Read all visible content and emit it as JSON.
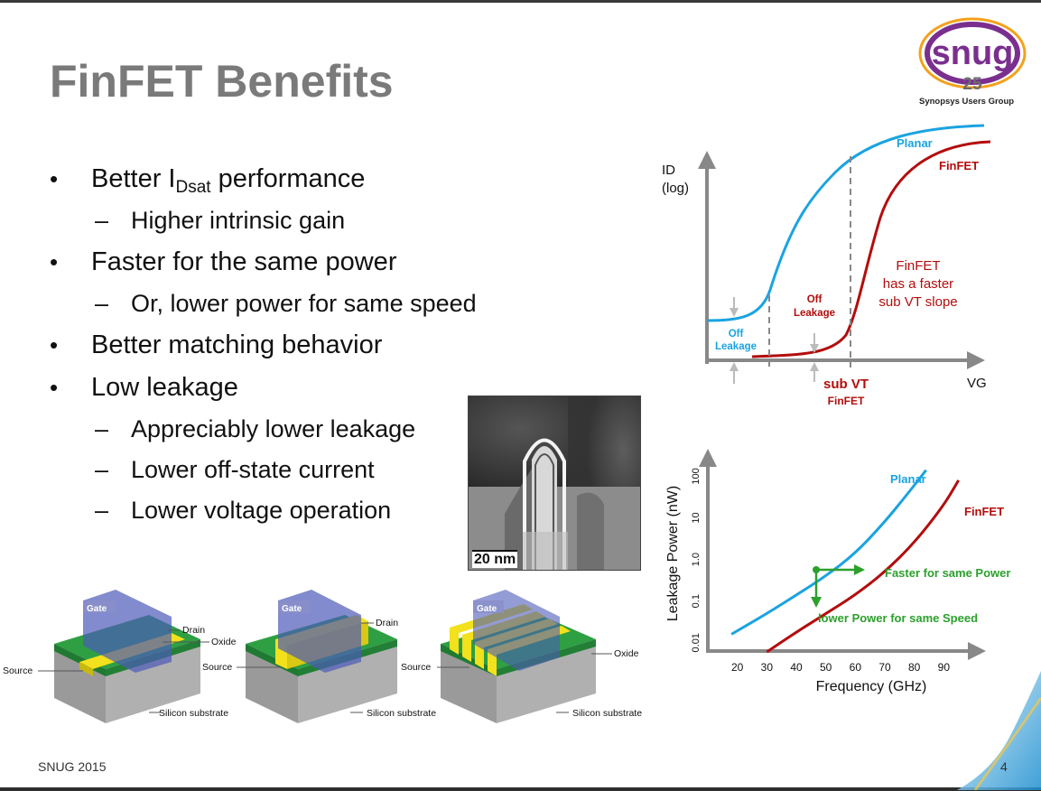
{
  "slide": {
    "title": "FinFET Benefits",
    "logo": {
      "mark": "snug",
      "number": "25",
      "subtitle": "Synopsys Users Group"
    },
    "bullets": [
      {
        "level": 1,
        "text": "Better I",
        "sub": "Dsat",
        "after": " performance"
      },
      {
        "level": 2,
        "text": "Higher intrinsic gain"
      },
      {
        "level": 1,
        "text": "Faster for the same power"
      },
      {
        "level": 2,
        "text": "Or, lower power for same speed"
      },
      {
        "level": 1,
        "text": "Better matching behavior"
      },
      {
        "level": 1,
        "text": "Low leakage"
      },
      {
        "level": 2,
        "text": "Appreciably lower leakage"
      },
      {
        "level": 2,
        "text": "Lower off-state current"
      },
      {
        "level": 2,
        "text": "Lower voltage operation"
      }
    ],
    "tem_image": {
      "scale_label": "20 nm"
    },
    "footer": {
      "left": "SNUG 2015",
      "page": "4"
    }
  },
  "transistor_diagrams": {
    "planar": {
      "gate": "Gate",
      "drain": "Drain",
      "oxide": "Oxide",
      "source": "Source",
      "substrate": "Silicon substrate"
    },
    "single_fin": {
      "gate": "Gate",
      "drain": "Drain",
      "source": "Source",
      "substrate": "Silicon substrate"
    },
    "multi_fin": {
      "gate": "Gate",
      "oxide": "Oxide",
      "source": "Source",
      "substrate": "Silicon substrate"
    }
  },
  "id_vg_chart": {
    "y_label_1": "ID",
    "y_label_2": "(log)",
    "x_label": "VG",
    "planar_label": "Planar",
    "finfet_label": "FinFET",
    "annotation_lines": [
      "FinFET",
      "has a faster",
      "sub VT slope"
    ],
    "off_leakage_planar": [
      "Off",
      "Leakage"
    ],
    "off_leakage_finfet": [
      "Off",
      "Leakage"
    ],
    "subvt_label": "sub VT",
    "subvt_sublabel": "FinFET",
    "colors": {
      "planar": "#1aa3e0",
      "finfet": "#b30d0d"
    }
  },
  "chart_data": {
    "type": "line",
    "ylabel": "Leakage Power (nW)",
    "xlabel": "Frequency (GHz)",
    "x_ticks": [
      "20",
      "30",
      "40",
      "50",
      "60",
      "70",
      "80",
      "90"
    ],
    "y_ticks": [
      "0.01",
      "0.1",
      "1.0",
      "10",
      "100"
    ],
    "series": [
      {
        "name": "Planar",
        "color": "#1aa3e0",
        "x": [
          18,
          30,
          40,
          50,
          60,
          70,
          78,
          84
        ],
        "y": [
          0.016,
          0.05,
          0.14,
          0.4,
          1.4,
          8,
          40,
          140
        ]
      },
      {
        "name": "FinFET",
        "color": "#b30d0d",
        "x": [
          30,
          40,
          50,
          60,
          70,
          80,
          90,
          95
        ],
        "y": [
          0.006,
          0.018,
          0.05,
          0.14,
          0.5,
          2.5,
          20,
          80
        ]
      }
    ],
    "annotations": {
      "faster": "Faster for same Power",
      "lower": "lower Power for same Speed",
      "color": "#2ca02c"
    }
  }
}
